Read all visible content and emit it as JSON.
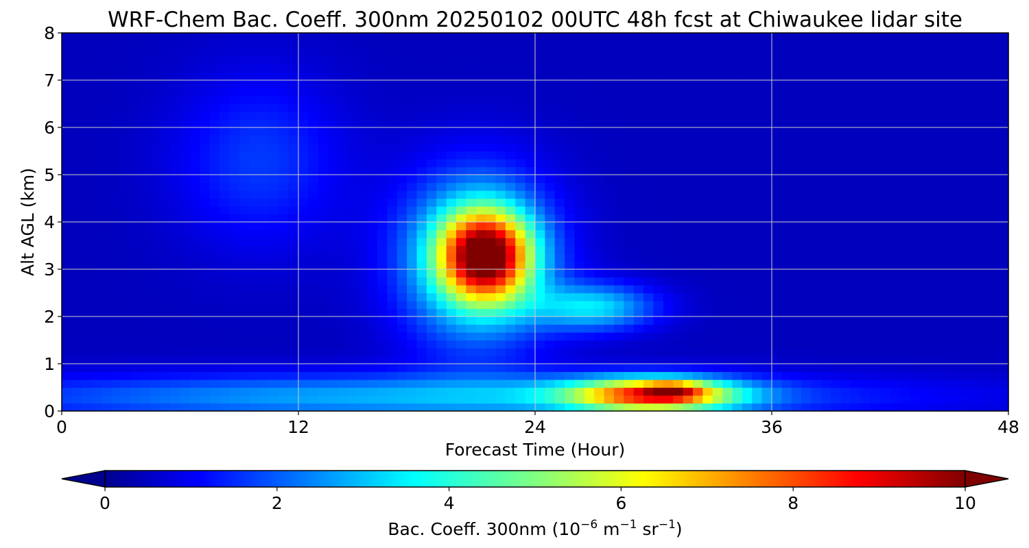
{
  "chart_data": {
    "type": "heatmap",
    "title": "WRF-Chem Bac. Coeff. 300nm  20250102 00UTC 48h fcst at Chiwaukee lidar site",
    "xlabel": "Forecast Time (Hour)",
    "ylabel": "Alt AGL (km)",
    "x_ticks": [
      0,
      12,
      24,
      36,
      48
    ],
    "y_ticks": [
      0,
      1,
      2,
      3,
      4,
      5,
      6,
      7,
      8
    ],
    "xlim": [
      0,
      48
    ],
    "ylim": [
      0,
      8
    ],
    "grid": true,
    "colormap": "jet",
    "colorbar": {
      "orientation": "horizontal",
      "placement": "bottom",
      "range": [
        0,
        10
      ],
      "ticks": [
        0,
        2,
        4,
        6,
        8,
        10
      ],
      "extend": "both",
      "label_prefix": "Bac. Coeff. 300nm  (10",
      "label_exp1": "−6",
      "label_mid1": " m",
      "label_exp2": "−1",
      "label_mid2": " sr",
      "label_exp3": "−1",
      "label_suffix": ")"
    },
    "background_value": 0.6,
    "features": [
      {
        "label": "aerosol plume core",
        "x_center": 21.5,
        "y_center": 3.3,
        "x_sigma": 1.6,
        "y_sigma": 0.65,
        "peak": 7.5
      },
      {
        "label": "aerosol plume halo",
        "x_center": 21.0,
        "y_center": 3.2,
        "x_sigma": 2.7,
        "y_sigma": 1.3,
        "peak": 3.5
      },
      {
        "label": "plume tail",
        "x_center": 27.0,
        "y_center": 2.2,
        "x_sigma": 2.2,
        "y_sigma": 0.35,
        "peak": 2.8
      },
      {
        "label": "boundary layer",
        "x_center": 18.0,
        "y_center": 0.3,
        "x_sigma": 16.0,
        "y_sigma": 0.35,
        "peak": 2.4
      },
      {
        "label": "low-level maximum",
        "x_center": 30.0,
        "y_center": 0.35,
        "x_sigma": 3.0,
        "y_sigma": 0.25,
        "peak": 6.5
      },
      {
        "label": "low-level peak",
        "x_center": 31.0,
        "y_center": 0.45,
        "x_sigma": 1.0,
        "y_sigma": 0.12,
        "peak": 2.5
      },
      {
        "label": "mid-level patch",
        "x_center": 10.0,
        "y_center": 5.3,
        "x_sigma": 3.0,
        "y_sigma": 1.3,
        "peak": 1.2
      }
    ]
  }
}
